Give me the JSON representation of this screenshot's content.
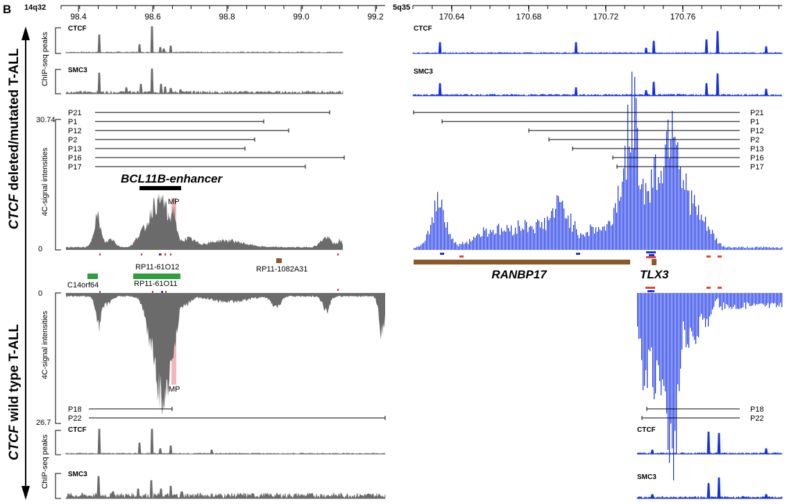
{
  "panel_letter": "B",
  "side_labels": {
    "top": {
      "italic": "CTCF",
      "rest": " deleted/mutated T-ALL"
    },
    "bottom": {
      "italic": "CTCF",
      "rest": " wild type T-ALL"
    }
  },
  "axis_titles": {
    "chip_top": "ChIP-seq peaks",
    "signal_top": "4C-signal intensities",
    "signal_bottom": "4C-signal intensities",
    "chip_bottom": "ChIP-seq peaks"
  },
  "left_panel": {
    "band": "14q32",
    "ticks": [
      "98.4",
      "98.6",
      "98.8",
      "99.0",
      "99.2"
    ],
    "tracks": {
      "ctcf_top": "CTCF",
      "smc3_top": "SMC3",
      "ctcf_bottom": "CTCF",
      "smc3_bottom": "SMC3"
    },
    "scale_top_max": "30.74",
    "scale_top_min": "0",
    "scale_bottom_min": "0",
    "scale_bottom_max": "26.7",
    "patients_top": [
      "P21",
      "P1",
      "P12",
      "P2",
      "P13",
      "P16",
      "P17"
    ],
    "patients_bottom": [
      "P18",
      "P22"
    ],
    "enhancer": "BCL11B-enhancer",
    "mp_top": "MP",
    "mp_bottom": "MP",
    "genes": {
      "rp_top": "RP11-61O12",
      "rp_right": "RP11-1082A31",
      "c14": "C14orf64",
      "rp_bottom": "RP11-61O11"
    }
  },
  "right_panel": {
    "band": "5q35",
    "ticks": [
      "170.64",
      "170.68",
      "170.72",
      "170.76"
    ],
    "tracks": {
      "ctcf_top": "CTCF",
      "smc3_top": "SMC3",
      "ctcf_bottom": "CTCF",
      "smc3_bottom": "SMC3"
    },
    "patients_top": [
      "P21",
      "P1",
      "P12",
      "P2",
      "P13",
      "P16",
      "P17"
    ],
    "patients_bottom": [
      "P18",
      "P22"
    ],
    "genes": {
      "ranbp17": "RANBP17",
      "tlx3": "TLX3"
    }
  },
  "colors": {
    "grey_track": "#6b6b6b",
    "blue_track": "#1430e6",
    "brown_gene": "#8b5a2b",
    "green_gene": "#2e9e3e",
    "mp_highlight": "#f4b6b6",
    "red_mark": "#e8412c"
  }
}
